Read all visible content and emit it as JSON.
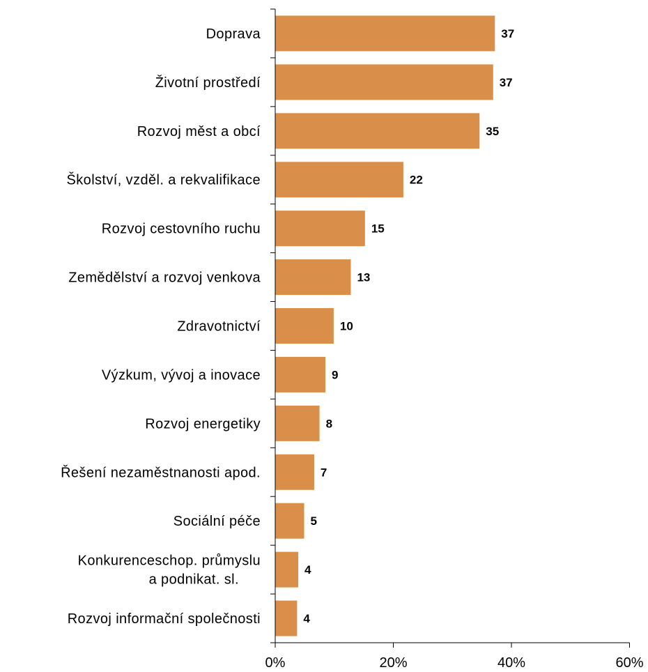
{
  "chart_data": {
    "type": "bar",
    "orientation": "horizontal",
    "categories": [
      "Doprava",
      "Životní prostředí",
      "Rozvoj měst a obcí",
      "Školství, vzděl. a rekvalifikace",
      "Rozvoj cestovního ruchu",
      "Zemědělství a rozvoj venkova",
      "Zdravotnictví",
      "Výzkum, vývoj a inovace",
      "Rozvoj energetiky",
      "Řešení nezaměstnanosti apod.",
      "Sociální péče",
      "Konkurenceschop. průmyslu\na podnikat. sl.",
      "Rozvoj informační společnosti"
    ],
    "values": [
      37.2,
      36.9,
      34.6,
      21.7,
      15.2,
      12.8,
      9.9,
      8.5,
      7.5,
      6.6,
      4.9,
      3.9,
      3.7
    ],
    "value_labels": [
      "37",
      "37",
      "35",
      "22",
      "15",
      "13",
      "10",
      "9",
      "8",
      "7",
      "5",
      "4",
      "4"
    ],
    "xlim": [
      0,
      60
    ],
    "xticks": [
      0,
      20,
      40,
      60
    ],
    "xtick_labels": [
      "0%",
      "20%",
      "40%",
      "60%"
    ],
    "bar_color": "#D98F4A",
    "grid": false,
    "legend": "none",
    "title": "",
    "xlabel": "",
    "ylabel": ""
  }
}
